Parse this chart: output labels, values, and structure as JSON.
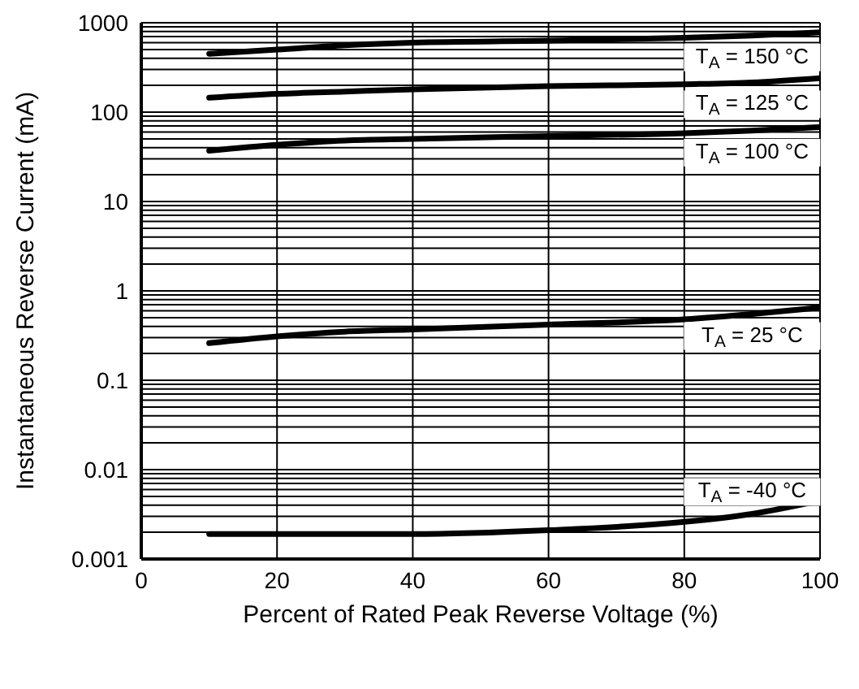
{
  "chart_data": {
    "type": "line",
    "xlabel": "Percent of Rated Peak Reverse Voltage (%)",
    "ylabel": "Instantaneous Reverse Current (mA)",
    "log": "y",
    "grid": true,
    "legend": false,
    "xlim": [
      0,
      100
    ],
    "xticks": [
      0,
      20,
      40,
      60,
      80,
      100
    ],
    "ylim": [
      0.001,
      1000
    ],
    "yticks": [
      0.001,
      0.01,
      0.1,
      1,
      10,
      100,
      1000
    ],
    "x": [
      10,
      20,
      30,
      40,
      60,
      80,
      90,
      100
    ],
    "series": [
      {
        "name": "T$_{A}$ = 150 °C",
        "color": "#000000",
        "values": [
          450,
          500,
          560,
          600,
          630,
          680,
          720,
          780
        ]
      },
      {
        "name": "T$_{A}$ = 125 °C",
        "color": "#000000",
        "values": [
          145,
          160,
          170,
          180,
          195,
          205,
          215,
          240
        ]
      },
      {
        "name": "T$_{A}$ = 100 °C",
        "color": "#000000",
        "values": [
          37,
          43,
          48,
          50,
          54,
          58,
          62,
          68
        ]
      },
      {
        "name": "T$_{A}$ = 25 °C",
        "color": "#000000",
        "values": [
          0.26,
          0.31,
          0.35,
          0.37,
          0.42,
          0.48,
          0.55,
          0.65
        ]
      },
      {
        "name": "T$_{A}$ = -40 °C",
        "color": "#000000",
        "values": [
          0.0019,
          0.0019,
          0.0019,
          0.0019,
          0.0021,
          0.0026,
          0.0032,
          0.0045
        ]
      }
    ]
  }
}
